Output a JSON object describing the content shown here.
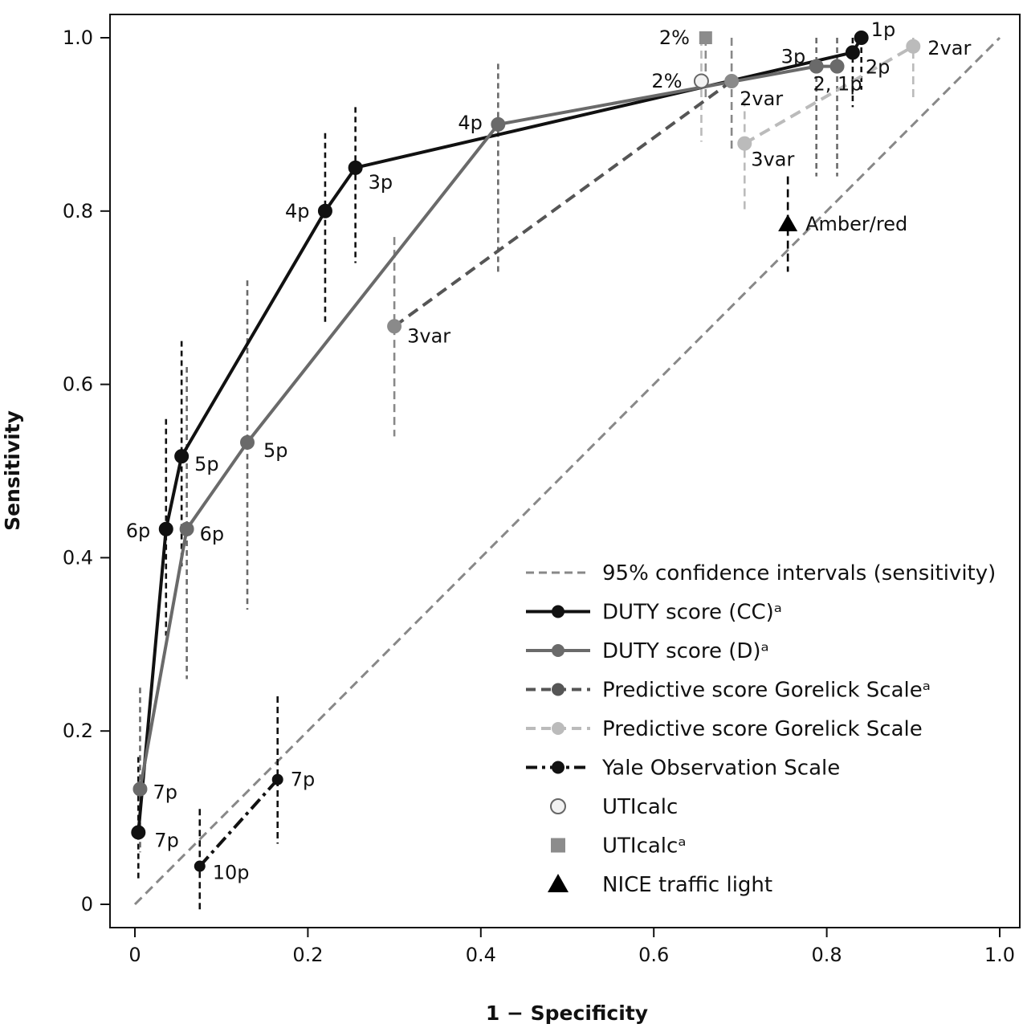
{
  "chart_data": {
    "type": "line",
    "title": "",
    "xlabel": "1 − Specificity",
    "ylabel": "Sensitivity",
    "xlim": [
      0,
      1.0
    ],
    "ylim": [
      0,
      1.0
    ],
    "x_ticks": [
      "0",
      "0.2",
      "0.4",
      "0.6",
      "0.8",
      "1.0"
    ],
    "y_ticks": [
      "0",
      "0.2",
      "0.4",
      "0.6",
      "0.8",
      "1.0"
    ],
    "grid": false,
    "legend_position": "bottom-right",
    "reference_line": {
      "from": [
        0,
        0
      ],
      "to": [
        1,
        1
      ],
      "color": "#888888"
    },
    "legend": [
      {
        "label": "95% confidence intervals (sensitivity)",
        "kind": "ci",
        "color": "#888888"
      },
      {
        "label": "DUTY score (CC)ᵃ",
        "kind": "solid",
        "color": "#111111"
      },
      {
        "label": "DUTY score (D)ᵃ",
        "kind": "solid",
        "color": "#6a6a6a"
      },
      {
        "label": "Predictive score Gorelick Scaleᵃ",
        "kind": "dashed",
        "color": "#555555"
      },
      {
        "label": "Predictive score Gorelick Scale",
        "kind": "dashed-light",
        "color": "#bbbbbb"
      },
      {
        "label": "Yale Observation Scale",
        "kind": "dashdot",
        "color": "#111111"
      },
      {
        "label": "UTIcalc",
        "kind": "open-circle",
        "color": "#888888"
      },
      {
        "label": "UTIcalcᵃ",
        "kind": "square",
        "color": "#8c8c8c"
      },
      {
        "label": "NICE traffic light",
        "kind": "triangle",
        "color": "#000000"
      }
    ],
    "series": [
      {
        "kind": "solid",
        "color": "#111111",
        "ci_color": "#111111",
        "ci_dash": "7,5",
        "points": [
          {
            "x": 0.004,
            "y": 0.083,
            "label": "7p",
            "lo": 0.03,
            "hi": 0.17
          },
          {
            "x": 0.036,
            "y": 0.433,
            "label": "6p",
            "lo": 0.31,
            "hi": 0.56
          },
          {
            "x": 0.054,
            "y": 0.517,
            "label": "5p",
            "lo": 0.39,
            "hi": 0.65
          },
          {
            "x": 0.22,
            "y": 0.8,
            "label": "4p",
            "lo": 0.67,
            "hi": 0.89
          },
          {
            "x": 0.255,
            "y": 0.85,
            "label": "3p",
            "lo": 0.74,
            "hi": 0.92
          },
          {
            "x": 0.83,
            "y": 0.983,
            "label": "2p",
            "lo": 0.92,
            "hi": 1.0
          },
          {
            "x": 0.84,
            "y": 1.0,
            "label": "1p",
            "lo": 0.94,
            "hi": 1.0
          }
        ]
      },
      {
        "kind": "solid",
        "color": "#6a6a6a",
        "ci_color": "#6a6a6a",
        "ci_dash": "7,5",
        "points": [
          {
            "x": 0.006,
            "y": 0.133,
            "label": "7p",
            "lo": 0.06,
            "hi": 0.25
          },
          {
            "x": 0.06,
            "y": 0.433,
            "label": "6p",
            "lo": 0.26,
            "hi": 0.62
          },
          {
            "x": 0.13,
            "y": 0.533,
            "label": "5p",
            "lo": 0.34,
            "hi": 0.72
          },
          {
            "x": 0.42,
            "y": 0.9,
            "label": "4p",
            "lo": 0.73,
            "hi": 0.97
          },
          {
            "x": 0.788,
            "y": 0.967,
            "label": "3p",
            "lo": 0.84,
            "hi": 1.0
          },
          {
            "x": 0.812,
            "y": 0.967,
            "label": "2, 1p",
            "lo": 0.84,
            "hi": 1.0
          }
        ]
      },
      {
        "kind": "dashed",
        "color": "#555555",
        "ci_color": "#888888",
        "ci_dash": "10,6",
        "points": [
          {
            "x": 0.3,
            "y": 0.667,
            "label": "3var",
            "lo": 0.54,
            "hi": 0.77,
            "marker_color": "#8a8a8a"
          },
          {
            "x": 0.69,
            "y": 0.95,
            "label": "2var",
            "lo": 0.87,
            "hi": 1.0,
            "marker_color": "#8a8a8a"
          }
        ]
      },
      {
        "kind": "dashed-light",
        "color": "#bbbbbb",
        "ci_color": "#bbbbbb",
        "ci_dash": "10,6",
        "points": [
          {
            "x": 0.705,
            "y": 0.878,
            "label": "3var",
            "lo": 0.8,
            "hi": 0.93
          },
          {
            "x": 0.9,
            "y": 0.99,
            "label": "2var",
            "lo": 0.93,
            "hi": 1.0
          }
        ]
      },
      {
        "kind": "dashdot",
        "color": "#111111",
        "ci_color": "#111111",
        "ci_dash": "8,5",
        "points": [
          {
            "x": 0.075,
            "y": 0.044,
            "label": "10p",
            "lo": -0.01,
            "hi": 0.11
          },
          {
            "x": 0.165,
            "y": 0.144,
            "label": "7p",
            "lo": 0.07,
            "hi": 0.24
          }
        ]
      }
    ],
    "singles": [
      {
        "kind": "open-circle",
        "x": 0.655,
        "y": 0.95,
        "label": "2%",
        "lo": 0.88,
        "hi": 1.0,
        "color": "#bbbbbb"
      },
      {
        "kind": "square",
        "x": 0.66,
        "y": 1.0,
        "label": "2%",
        "lo": 0.93,
        "hi": 1.0,
        "color": "#8c8c8c"
      },
      {
        "kind": "triangle",
        "x": 0.755,
        "y": 0.785,
        "label": "Amber/red",
        "lo": 0.73,
        "hi": 0.84,
        "color": "#000000"
      }
    ]
  }
}
